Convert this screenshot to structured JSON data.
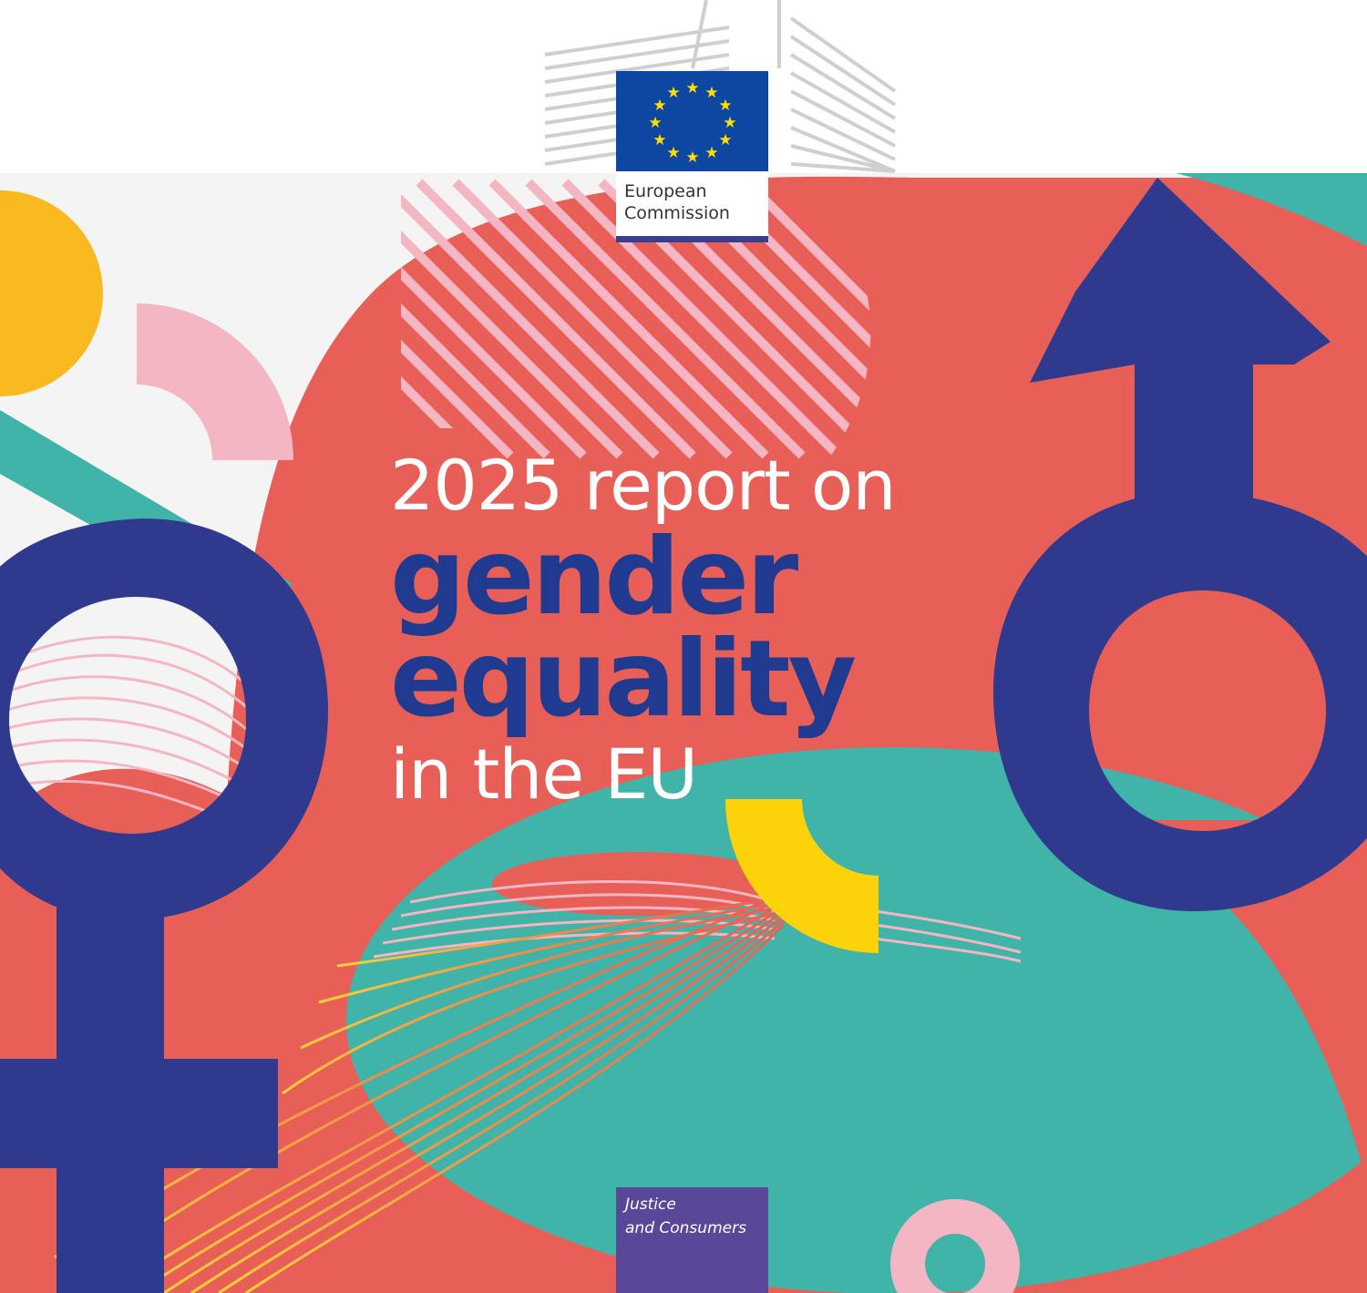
{
  "cover": {
    "title_line_1": "2025 report on",
    "title_line_2": "gender",
    "title_line_3": "equality",
    "title_line_4": "in the EU"
  },
  "logo": {
    "organisation": "European\nCommission"
  },
  "department": {
    "label": "Justice\nand Consumers"
  },
  "colors": {
    "coral": "#e85f58",
    "navy": "#2f3a8f",
    "teal": "#40b4a9",
    "yellow": "#f9ba21",
    "pink": "#f4b6c2",
    "purple": "#5b4797",
    "eu_blue": "#0e47a1",
    "eu_star_yellow": "#ffdd00"
  },
  "icons": [
    "eu-flag-icon",
    "female-symbol-icon",
    "male-symbol-icon",
    "berlaymont-building-icon"
  ]
}
